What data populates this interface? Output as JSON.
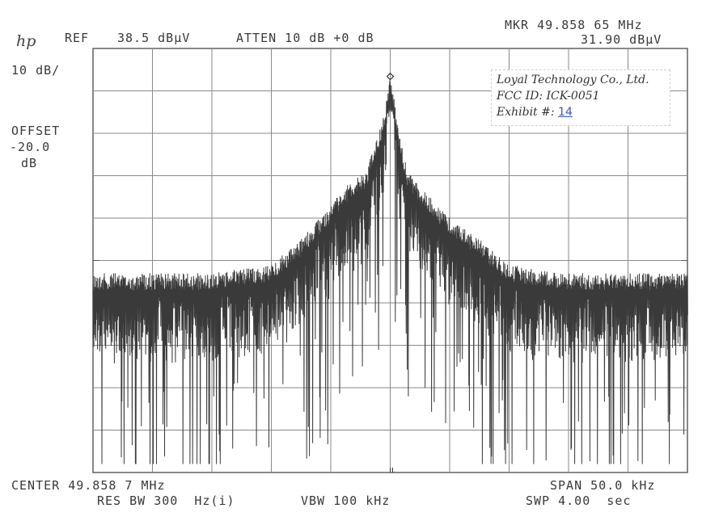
{
  "header": {
    "logo": "hp",
    "ref_label": "REF",
    "ref_value": "38.5 dBµV",
    "atten": "ATTEN 10 dB +0 dB",
    "marker_freq": "MKR 49.858 65 MHz",
    "marker_level": "31.90 dBµV",
    "scale": "10 dB/",
    "offset_label": "OFFSET",
    "offset_value": "-20.0",
    "offset_unit": "dB"
  },
  "stamp": {
    "company": "Loyal Technology Co., Ltd.",
    "fcc_id": "FCC ID:  ICK-0051",
    "exhibit_label": "Exhibit #:",
    "exhibit_value": "14"
  },
  "footer": {
    "center": "CENTER 49.858 7 MHz",
    "span": "SPAN 50.0 kHz",
    "res_bw": "RES BW 300  Hz(i)",
    "vbw": "VBW 100 kHz",
    "sweep": "SWP 4.00  sec"
  },
  "chart_data": {
    "type": "line",
    "title": "",
    "xlabel": "",
    "ylabel": "",
    "x_range_khz": [
      -25,
      25
    ],
    "ylim": [
      -61.5,
      38.5
    ],
    "grid": true,
    "grid_divisions": {
      "x": 10,
      "y": 10
    },
    "marker": {
      "x": 0,
      "y": 31.9
    },
    "series": [
      {
        "envelope_x_khz": [
          -25,
          -15,
          -10,
          -7.5,
          -5,
          -4,
          -3,
          -2,
          -1.5,
          -1,
          -0.5,
          0,
          0.5,
          1,
          1.5,
          2,
          3,
          4,
          5,
          7.5,
          10,
          15,
          25
        ],
        "envelope_y": [
          -14.5,
          -14.5,
          -12.5,
          -6.5,
          1.5,
          5.5,
          7.5,
          9.5,
          14.5,
          18.5,
          23.5,
          31.9,
          23.5,
          15.5,
          9.5,
          7.5,
          4.5,
          1.5,
          -1.5,
          -6.5,
          -12.5,
          -14.5,
          -14.5
        ],
        "noise_floor_y": [
          -18.5,
          -30.5
        ]
      }
    ]
  }
}
